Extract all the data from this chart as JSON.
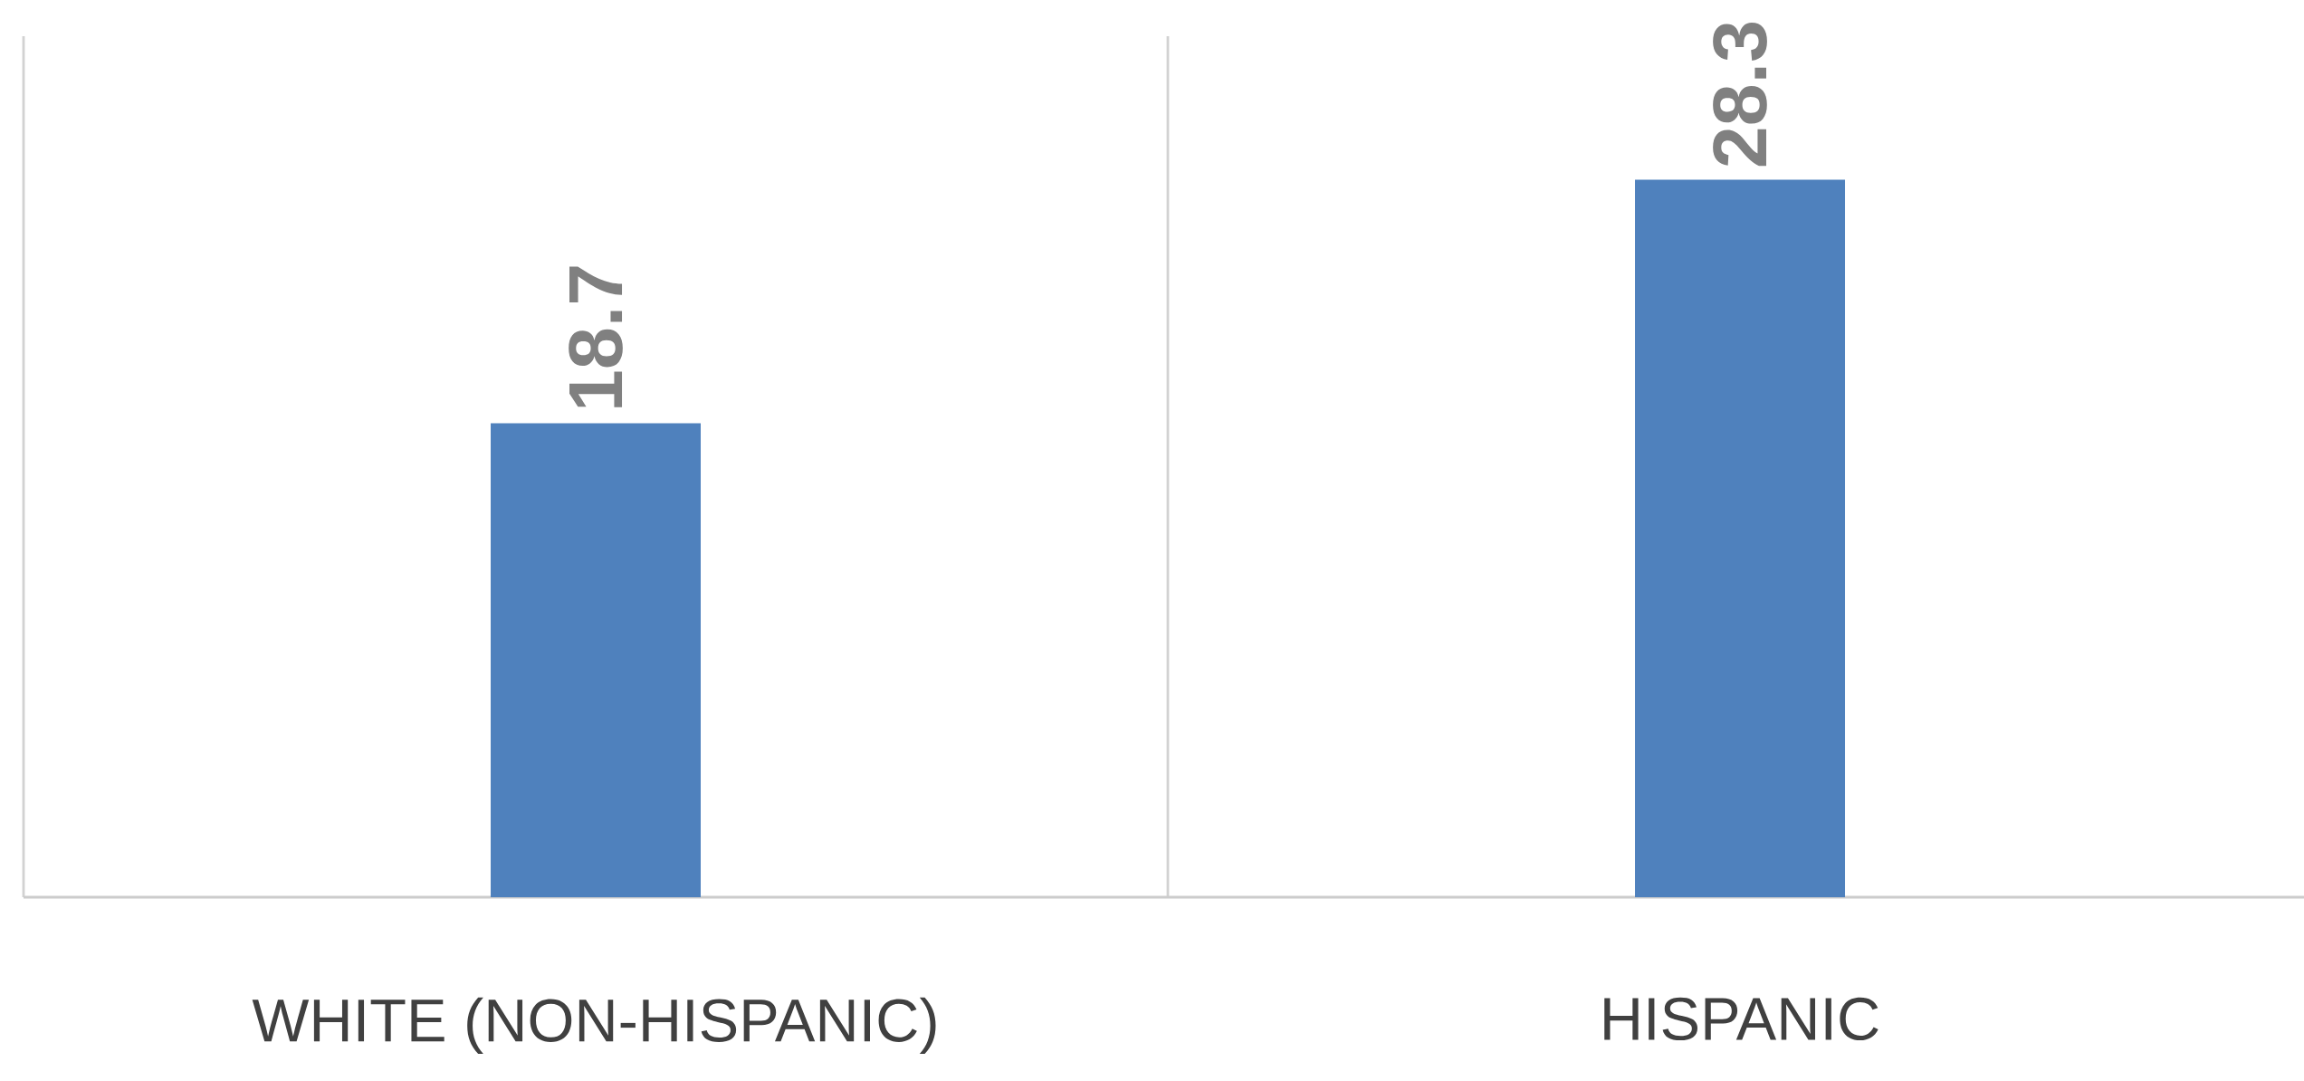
{
  "chart_data": {
    "type": "bar",
    "categories": [
      "WHITE (NON-HISPANIC)",
      "HISPANIC"
    ],
    "values": [
      18.7,
      28.3
    ],
    "color": "#4f81bd",
    "data_labels": true,
    "grid": "x"
  }
}
